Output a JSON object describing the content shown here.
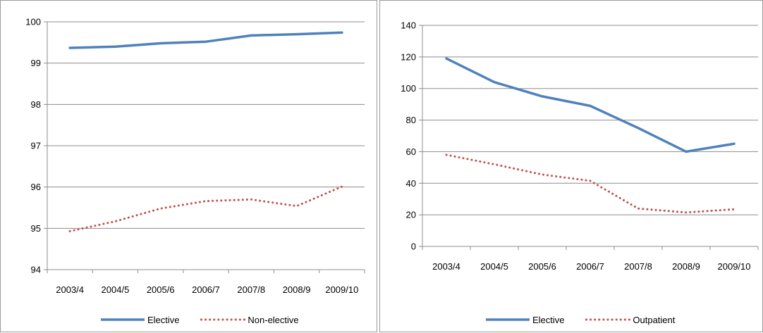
{
  "chart_data": [
    {
      "type": "line",
      "categories": [
        "2003/4",
        "2004/5",
        "2005/6",
        "2006/7",
        "2007/8",
        "2008/9",
        "2009/10"
      ],
      "series": [
        {
          "name": "Elective",
          "values": [
            99.37,
            99.4,
            99.48,
            99.52,
            99.67,
            99.7,
            99.74
          ],
          "color": "#4f81bd",
          "style": "solid"
        },
        {
          "name": "Non-elective",
          "values": [
            94.93,
            95.17,
            95.48,
            95.66,
            95.7,
            95.54,
            96.01
          ],
          "color": "#c0504d",
          "style": "dotted"
        }
      ],
      "yticks": [
        "94",
        "95",
        "96",
        "97",
        "98",
        "99",
        "100"
      ],
      "ylim": [
        94,
        100
      ],
      "grid": true,
      "legend": "bottom",
      "title": "",
      "xlabel": "",
      "ylabel": ""
    },
    {
      "type": "line",
      "categories": [
        "2003/4",
        "2004/5",
        "2005/6",
        "2006/7",
        "2007/8",
        "2008/9",
        "2009/10"
      ],
      "series": [
        {
          "name": "Elective",
          "values": [
            119,
            104,
            95,
            89,
            75,
            60,
            65
          ],
          "color": "#4f81bd",
          "style": "solid"
        },
        {
          "name": "Outpatient",
          "values": [
            58,
            52,
            45.5,
            41.5,
            24,
            21.5,
            23.5
          ],
          "color": "#c0504d",
          "style": "dotted"
        }
      ],
      "yticks": [
        "0",
        "20",
        "40",
        "60",
        "80",
        "100",
        "120",
        "140"
      ],
      "ylim": [
        0,
        140
      ],
      "grid": true,
      "legend": "bottom",
      "title": "",
      "xlabel": "",
      "ylabel": ""
    }
  ]
}
